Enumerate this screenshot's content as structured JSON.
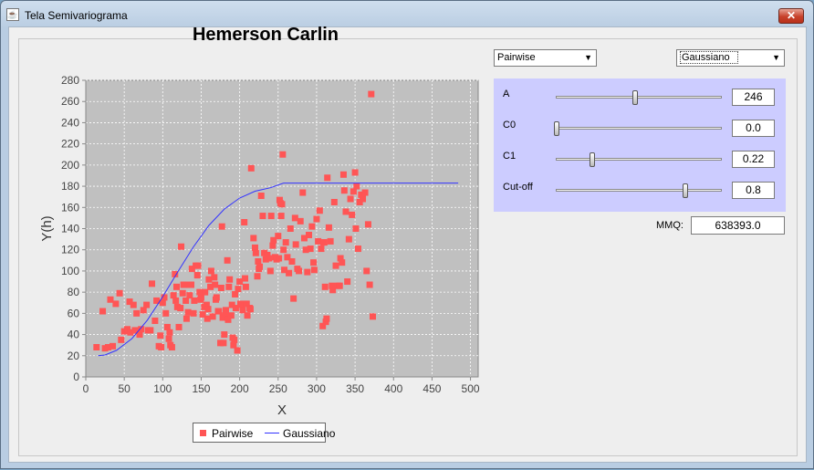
{
  "window": {
    "title": "Tela Semivariograma",
    "close_label": "✕",
    "app_icon": "java-cup-icon"
  },
  "chart": {
    "title": "Hemerson Carlin"
  },
  "controls": {
    "method_select": "Pairwise",
    "model_select": "Gaussiano",
    "params": [
      {
        "label": "A",
        "value": "246",
        "slider_fraction": 0.49
      },
      {
        "label": "C0",
        "value": "0.0",
        "slider_fraction": 0.0
      },
      {
        "label": "C1",
        "value": "0.22",
        "slider_fraction": 0.22
      },
      {
        "label": "Cut-off",
        "value": "0.8",
        "slider_fraction": 0.8
      }
    ],
    "mmq_label": "MMQ:",
    "mmq_value": "638393.0"
  },
  "legend": {
    "series1": "Pairwise",
    "series2": "Gaussiano"
  },
  "colors": {
    "points": "#ff5555",
    "line": "#3333ff",
    "plot_bg": "#c0c0c0",
    "panel": "#ccccff"
  },
  "chart_data": {
    "type": "scatter",
    "title": "Hemerson Carlin",
    "xlabel": "X",
    "ylabel": "Y(h)",
    "xlim": [
      0,
      510
    ],
    "ylim": [
      0,
      280
    ],
    "xticks": [
      0,
      50,
      100,
      150,
      200,
      250,
      300,
      350,
      400,
      450,
      500
    ],
    "yticks": [
      0,
      20,
      40,
      60,
      80,
      100,
      120,
      140,
      160,
      180,
      200,
      220,
      240,
      260,
      280
    ],
    "grid": true,
    "legend_position": "bottom",
    "series": [
      {
        "name": "Pairwise",
        "kind": "scatter",
        "points": [
          [
            14,
            28
          ],
          [
            22,
            62
          ],
          [
            25,
            27
          ],
          [
            29,
            28
          ],
          [
            32,
            73
          ],
          [
            35,
            29
          ],
          [
            39,
            69
          ],
          [
            44,
            79
          ],
          [
            46,
            35
          ],
          [
            50,
            43
          ],
          [
            54,
            45
          ],
          [
            57,
            71
          ],
          [
            58,
            42
          ],
          [
            62,
            68
          ],
          [
            64,
            44
          ],
          [
            66,
            60
          ],
          [
            70,
            40
          ],
          [
            72,
            45
          ],
          [
            75,
            63
          ],
          [
            79,
            68
          ],
          [
            81,
            44
          ],
          [
            84,
            44
          ],
          [
            86,
            88
          ],
          [
            90,
            53
          ],
          [
            92,
            72
          ],
          [
            95,
            29
          ],
          [
            97,
            39
          ],
          [
            98,
            28
          ],
          [
            100,
            70
          ],
          [
            102,
            75
          ],
          [
            104,
            60
          ],
          [
            106,
            47
          ],
          [
            108,
            36
          ],
          [
            109,
            42
          ],
          [
            110,
            30
          ],
          [
            112,
            28
          ],
          [
            114,
            77
          ],
          [
            116,
            97
          ],
          [
            117,
            72
          ],
          [
            118,
            85
          ],
          [
            119,
            66
          ],
          [
            121,
            47
          ],
          [
            123,
            65
          ],
          [
            124,
            123
          ],
          [
            126,
            79
          ],
          [
            127,
            87
          ],
          [
            129,
            87
          ],
          [
            130,
            72
          ],
          [
            131,
            55
          ],
          [
            133,
            61
          ],
          [
            135,
            77
          ],
          [
            137,
            87
          ],
          [
            138,
            102
          ],
          [
            140,
            60
          ],
          [
            141,
            72
          ],
          [
            143,
            105
          ],
          [
            145,
            96
          ],
          [
            146,
            105
          ],
          [
            148,
            80
          ],
          [
            149,
            73
          ],
          [
            150,
            75
          ],
          [
            152,
            59
          ],
          [
            154,
            66
          ],
          [
            155,
            80
          ],
          [
            157,
            68
          ],
          [
            158,
            55
          ],
          [
            159,
            64
          ],
          [
            160,
            92
          ],
          [
            162,
            85
          ],
          [
            163,
            100
          ],
          [
            165,
            57
          ],
          [
            167,
            94
          ],
          [
            168,
            87
          ],
          [
            169,
            73
          ],
          [
            170,
            75
          ],
          [
            172,
            62
          ],
          [
            173,
            62
          ],
          [
            175,
            32
          ],
          [
            176,
            84
          ],
          [
            177,
            142
          ],
          [
            178,
            56
          ],
          [
            179,
            32
          ],
          [
            180,
            40
          ],
          [
            181,
            58
          ],
          [
            182,
            63
          ],
          [
            184,
            110
          ],
          [
            185,
            54
          ],
          [
            186,
            85
          ],
          [
            187,
            92
          ],
          [
            189,
            58
          ],
          [
            190,
            68
          ],
          [
            191,
            37
          ],
          [
            192,
            30
          ],
          [
            193,
            35
          ],
          [
            194,
            78
          ],
          [
            195,
            65
          ],
          [
            197,
            25
          ],
          [
            198,
            83
          ],
          [
            200,
            90
          ],
          [
            201,
            69
          ],
          [
            203,
            68
          ],
          [
            204,
            63
          ],
          [
            206,
            146
          ],
          [
            207,
            93
          ],
          [
            208,
            85
          ],
          [
            209,
            69
          ],
          [
            210,
            58
          ],
          [
            213,
            65
          ],
          [
            214,
            64
          ],
          [
            215,
            197
          ],
          [
            218,
            131
          ],
          [
            220,
            122
          ],
          [
            221,
            117
          ],
          [
            223,
            95
          ],
          [
            224,
            109
          ],
          [
            225,
            102
          ],
          [
            226,
            104
          ],
          [
            228,
            171
          ],
          [
            230,
            152
          ],
          [
            232,
            117
          ],
          [
            234,
            111
          ],
          [
            236,
            115
          ],
          [
            238,
            112
          ],
          [
            240,
            100
          ],
          [
            241,
            152
          ],
          [
            243,
            124
          ],
          [
            244,
            129
          ],
          [
            246,
            113
          ],
          [
            248,
            111
          ],
          [
            250,
            133
          ],
          [
            251,
            112
          ],
          [
            252,
            167
          ],
          [
            253,
            164
          ],
          [
            254,
            152
          ],
          [
            255,
            163
          ],
          [
            256,
            210
          ],
          [
            257,
            120
          ],
          [
            258,
            101
          ],
          [
            260,
            127
          ],
          [
            262,
            113
          ],
          [
            264,
            98
          ],
          [
            266,
            140
          ],
          [
            268,
            109
          ],
          [
            270,
            74
          ],
          [
            272,
            150
          ],
          [
            273,
            125
          ],
          [
            275,
            102
          ],
          [
            277,
            100
          ],
          [
            279,
            147
          ],
          [
            282,
            174
          ],
          [
            284,
            131
          ],
          [
            286,
            120
          ],
          [
            288,
            99
          ],
          [
            290,
            134
          ],
          [
            292,
            121
          ],
          [
            294,
            142
          ],
          [
            296,
            108
          ],
          [
            297,
            101
          ],
          [
            300,
            149
          ],
          [
            302,
            128
          ],
          [
            304,
            157
          ],
          [
            306,
            121
          ],
          [
            308,
            48
          ],
          [
            309,
            127
          ],
          [
            310,
            127
          ],
          [
            311,
            85
          ],
          [
            312,
            52
          ],
          [
            313,
            55
          ],
          [
            314,
            188
          ],
          [
            316,
            141
          ],
          [
            318,
            128
          ],
          [
            320,
            86
          ],
          [
            321,
            82
          ],
          [
            323,
            165
          ],
          [
            325,
            105
          ],
          [
            328,
            86
          ],
          [
            330,
            86
          ],
          [
            331,
            112
          ],
          [
            333,
            108
          ],
          [
            335,
            191
          ],
          [
            336,
            176
          ],
          [
            338,
            156
          ],
          [
            340,
            90
          ],
          [
            342,
            130
          ],
          [
            344,
            168
          ],
          [
            346,
            153
          ],
          [
            348,
            175
          ],
          [
            350,
            193
          ],
          [
            351,
            140
          ],
          [
            352,
            180
          ],
          [
            354,
            121
          ],
          [
            356,
            165
          ],
          [
            358,
            172
          ],
          [
            360,
            168
          ],
          [
            363,
            174
          ],
          [
            365,
            100
          ],
          [
            367,
            144
          ],
          [
            369,
            87
          ],
          [
            371,
            267
          ],
          [
            373,
            57
          ]
        ]
      },
      {
        "name": "Gaussiano",
        "kind": "line",
        "points": [
          [
            16,
            20
          ],
          [
            25,
            20.7
          ],
          [
            40,
            25.1
          ],
          [
            60,
            36.2
          ],
          [
            80,
            53.6
          ],
          [
            100,
            75.7
          ],
          [
            120,
            99.7
          ],
          [
            140,
            122.8
          ],
          [
            160,
            143
          ],
          [
            180,
            158.4
          ],
          [
            200,
            168.9
          ],
          [
            220,
            175.3
          ],
          [
            240,
            178.6
          ],
          [
            257,
            183
          ],
          [
            300,
            183
          ],
          [
            350,
            183
          ],
          [
            400,
            183
          ],
          [
            450,
            183
          ],
          [
            484,
            183
          ]
        ]
      }
    ]
  }
}
